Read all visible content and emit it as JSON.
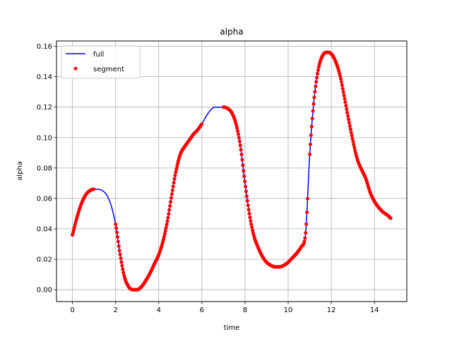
{
  "chart_data": {
    "type": "line",
    "title": "alpha",
    "xlabel": "time",
    "ylabel": "alpha",
    "xlim": [
      -0.74,
      15.5
    ],
    "ylim": [
      -0.0078,
      0.1635
    ],
    "xticks": [
      0,
      2,
      4,
      6,
      8,
      10,
      12,
      14
    ],
    "xtick_labels": [
      "0",
      "2",
      "4",
      "6",
      "8",
      "10",
      "12",
      "14"
    ],
    "yticks": [
      0.0,
      0.02,
      0.04,
      0.06,
      0.08,
      0.1,
      0.12,
      0.14,
      0.16
    ],
    "ytick_labels": [
      "0.00",
      "0.02",
      "0.04",
      "0.06",
      "0.08",
      "0.10",
      "0.12",
      "0.14",
      "0.16"
    ],
    "grid": true,
    "legend_position": "top-left",
    "series": [
      {
        "name": "full",
        "style": "line",
        "color": "#0000ff",
        "x": [
          0,
          0.2,
          0.4,
          0.6,
          0.8,
          1.0,
          1.2,
          1.4,
          1.6,
          1.8,
          2.0,
          2.2,
          2.4,
          2.6,
          2.8,
          3.0,
          3.2,
          3.4,
          3.6,
          3.8,
          4.0,
          4.2,
          4.4,
          4.6,
          4.8,
          5.0,
          5.2,
          5.4,
          5.6,
          5.8,
          6.0,
          6.2,
          6.4,
          6.6,
          6.8,
          7.0,
          7.2,
          7.4,
          7.6,
          7.8,
          8.0,
          8.2,
          8.4,
          8.6,
          8.8,
          9.0,
          9.2,
          9.4,
          9.6,
          9.8,
          10.0,
          10.2,
          10.4,
          10.6,
          10.8,
          11.0,
          11.2,
          11.4,
          11.6,
          11.8,
          12.0,
          12.2,
          12.4,
          12.6,
          12.8,
          13.0,
          13.2,
          13.4,
          13.6,
          13.8,
          14.0,
          14.2,
          14.4,
          14.6,
          14.75
        ],
        "y": [
          0.036,
          0.047,
          0.056,
          0.062,
          0.065,
          0.066,
          0.066,
          0.065,
          0.062,
          0.055,
          0.043,
          0.024,
          0.009,
          0.002,
          0.0,
          0.0,
          0.002,
          0.006,
          0.011,
          0.017,
          0.023,
          0.032,
          0.045,
          0.062,
          0.078,
          0.089,
          0.094,
          0.098,
          0.102,
          0.105,
          0.109,
          0.114,
          0.118,
          0.12,
          0.12,
          0.12,
          0.119,
          0.116,
          0.108,
          0.093,
          0.07,
          0.05,
          0.036,
          0.028,
          0.022,
          0.018,
          0.016,
          0.015,
          0.015,
          0.016,
          0.018,
          0.021,
          0.024,
          0.028,
          0.036,
          0.089,
          0.125,
          0.145,
          0.154,
          0.156,
          0.155,
          0.15,
          0.141,
          0.127,
          0.112,
          0.098,
          0.086,
          0.079,
          0.073,
          0.064,
          0.058,
          0.054,
          0.051,
          0.049,
          0.047
        ]
      },
      {
        "name": "segment",
        "style": "markers",
        "color": "#ff0000",
        "ranges": [
          [
            0,
            1.0
          ],
          [
            2.0,
            6.0
          ],
          [
            7.0,
            10.9
          ],
          [
            11.0,
            14.75
          ]
        ]
      }
    ]
  }
}
